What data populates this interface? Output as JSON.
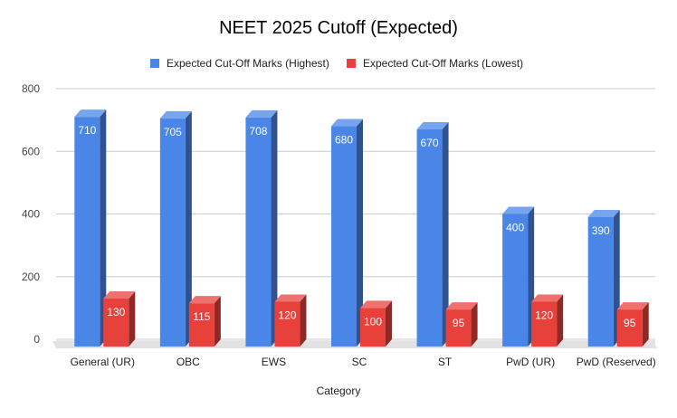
{
  "chart_data": {
    "type": "bar",
    "title": "NEET 2025 Cutoff (Expected)",
    "xlabel": "Category",
    "ylabel": "",
    "ylim": [
      0,
      800
    ],
    "yticks": [
      0,
      200,
      400,
      600,
      800
    ],
    "grid": true,
    "legend_position": "top",
    "style": "3d",
    "categories": [
      "General (UR)",
      "OBC",
      "EWS",
      "SC",
      "ST",
      "PwD (UR)",
      "PwD (Reserved)"
    ],
    "series": [
      {
        "name": "Expected Cut-Off Marks (Highest)",
        "color": "#4a86e8",
        "values": [
          710,
          705,
          708,
          680,
          670,
          400,
          390
        ]
      },
      {
        "name": "Expected Cut-Off Marks (Lowest)",
        "color": "#e8413c",
        "values": [
          130,
          115,
          120,
          100,
          95,
          120,
          95
        ]
      }
    ]
  }
}
